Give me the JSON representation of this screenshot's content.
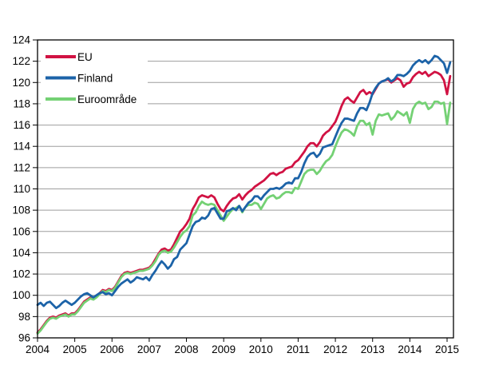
{
  "chart_data": {
    "type": "line",
    "title": "",
    "xlabel": "",
    "ylabel": "",
    "grid": "horizontal",
    "legend_position": "top-left-inside",
    "x_start": "2004-01",
    "x_end": "2015-02",
    "points_per_year": 12,
    "ylim": [
      96,
      124
    ],
    "y_ticks": [
      96,
      98,
      100,
      102,
      104,
      106,
      108,
      110,
      112,
      114,
      116,
      118,
      120,
      122,
      124
    ],
    "x_ticks": [
      2004,
      2005,
      2006,
      2007,
      2008,
      2009,
      2010,
      2011,
      2012,
      2013,
      2014,
      2015
    ],
    "series": [
      {
        "name": "EU",
        "color": "#D11243",
        "values": [
          96.5,
          96.8,
          97.2,
          97.6,
          97.9,
          98.0,
          97.9,
          98.1,
          98.2,
          98.3,
          98.1,
          98.3,
          98.3,
          98.6,
          99.0,
          99.4,
          99.6,
          99.8,
          99.7,
          99.9,
          100.2,
          100.5,
          100.4,
          100.6,
          100.5,
          100.8,
          101.3,
          101.8,
          102.1,
          102.2,
          102.1,
          102.2,
          102.3,
          102.4,
          102.4,
          102.5,
          102.6,
          102.9,
          103.4,
          103.9,
          104.3,
          104.4,
          104.2,
          104.3,
          104.8,
          105.4,
          106.0,
          106.3,
          106.7,
          107.2,
          108.1,
          108.6,
          109.2,
          109.4,
          109.3,
          109.2,
          109.4,
          109.2,
          108.6,
          108.1,
          107.9,
          108.4,
          108.8,
          109.1,
          109.2,
          109.5,
          109.0,
          109.4,
          109.7,
          109.9,
          110.2,
          110.4,
          110.6,
          110.8,
          111.1,
          111.4,
          111.5,
          111.3,
          111.5,
          111.6,
          111.9,
          112.0,
          112.1,
          112.5,
          112.7,
          113.1,
          113.5,
          114.0,
          114.3,
          114.3,
          114.0,
          114.4,
          115.0,
          115.3,
          115.5,
          115.9,
          116.3,
          117.0,
          117.8,
          118.4,
          118.6,
          118.3,
          118.1,
          118.6,
          119.1,
          119.3,
          118.9,
          119.1,
          118.9,
          119.4,
          119.9,
          120.1,
          120.2,
          120.3,
          120.0,
          120.2,
          120.4,
          120.2,
          119.6,
          119.9,
          120.0,
          120.5,
          120.8,
          121.0,
          120.8,
          121.0,
          120.6,
          120.8,
          121.0,
          120.9,
          120.7,
          120.2,
          118.9,
          120.6
        ]
      },
      {
        "name": "Finland",
        "color": "#1C63A8",
        "values": [
          99.1,
          99.3,
          99.0,
          99.3,
          99.4,
          99.1,
          98.8,
          99.0,
          99.3,
          99.5,
          99.3,
          99.1,
          99.3,
          99.6,
          99.9,
          100.1,
          100.2,
          100.0,
          99.8,
          100.0,
          100.2,
          100.3,
          100.1,
          100.2,
          100.0,
          100.4,
          100.8,
          101.1,
          101.3,
          101.5,
          101.2,
          101.4,
          101.7,
          101.6,
          101.5,
          101.7,
          101.4,
          101.9,
          102.3,
          102.8,
          103.2,
          102.9,
          102.5,
          102.8,
          103.4,
          103.6,
          104.3,
          104.6,
          104.9,
          105.7,
          106.5,
          106.9,
          107.0,
          107.3,
          107.2,
          107.5,
          108.1,
          108.2,
          107.7,
          107.2,
          107.2,
          107.9,
          108.0,
          108.2,
          108.0,
          108.4,
          107.9,
          108.3,
          108.7,
          108.9,
          109.3,
          109.3,
          109.0,
          109.4,
          109.7,
          110.0,
          110.0,
          110.1,
          110.0,
          110.2,
          110.5,
          110.6,
          110.5,
          111.0,
          111.0,
          111.6,
          112.4,
          113.0,
          113.3,
          113.4,
          113.0,
          113.3,
          113.9,
          114.0,
          114.1,
          114.2,
          114.9,
          115.6,
          116.2,
          116.6,
          116.6,
          116.5,
          116.4,
          117.1,
          117.6,
          117.6,
          117.4,
          118.1,
          119.0,
          119.5,
          119.9,
          120.1,
          120.2,
          120.4,
          120.1,
          120.3,
          120.7,
          120.7,
          120.6,
          120.8,
          121.1,
          121.6,
          121.9,
          122.1,
          121.9,
          122.1,
          121.8,
          122.1,
          122.5,
          122.4,
          122.1,
          121.8,
          120.9,
          121.9
        ]
      },
      {
        "name": "Euroområde",
        "color": "#74D174",
        "values": [
          96.4,
          96.7,
          97.1,
          97.5,
          97.8,
          97.9,
          97.8,
          98.0,
          98.1,
          98.2,
          98.0,
          98.2,
          98.2,
          98.5,
          98.9,
          99.3,
          99.5,
          99.7,
          99.6,
          99.8,
          100.1,
          100.4,
          100.3,
          100.5,
          100.4,
          100.7,
          101.2,
          101.7,
          102.0,
          102.1,
          102.0,
          102.1,
          102.2,
          102.3,
          102.3,
          102.4,
          102.5,
          102.8,
          103.2,
          103.8,
          104.1,
          104.2,
          104.0,
          104.1,
          104.5,
          105.0,
          105.5,
          105.9,
          106.1,
          106.5,
          107.5,
          107.8,
          108.4,
          108.8,
          108.6,
          108.5,
          108.6,
          108.5,
          108.0,
          107.5,
          107.0,
          107.4,
          107.8,
          108.1,
          108.2,
          108.4,
          107.8,
          108.3,
          108.5,
          108.5,
          108.7,
          108.6,
          108.1,
          108.6,
          109.1,
          109.3,
          109.4,
          109.1,
          109.2,
          109.5,
          109.7,
          109.7,
          109.6,
          110.1,
          110.0,
          110.7,
          111.4,
          111.7,
          111.8,
          111.8,
          111.4,
          111.7,
          112.2,
          112.6,
          112.8,
          113.2,
          114.0,
          114.7,
          115.3,
          115.6,
          115.5,
          115.3,
          115.0,
          115.9,
          116.4,
          116.4,
          116.0,
          116.2,
          115.1,
          116.4,
          117.0,
          116.9,
          117.0,
          117.1,
          116.5,
          116.8,
          117.3,
          117.1,
          116.9,
          117.2,
          116.2,
          117.5,
          118.0,
          118.2,
          118.0,
          118.1,
          117.5,
          117.7,
          118.2,
          118.2,
          118.0,
          118.1,
          116.1,
          118.1
        ]
      }
    ]
  },
  "colors": {
    "background": "#FFFFFF",
    "plot_border": "#000000",
    "gridline": "#9E9E9E",
    "tick": "#000000",
    "text": "#000000"
  }
}
